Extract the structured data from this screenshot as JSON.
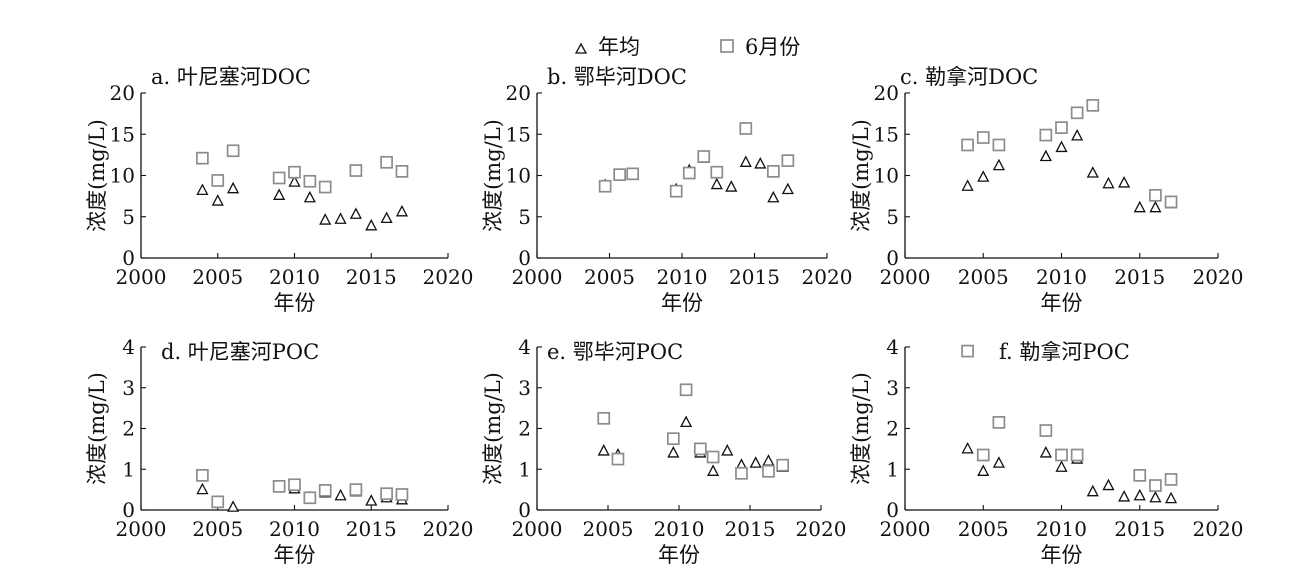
{
  "legend": {
    "items": [
      {
        "label": "年均",
        "marker": "triangle",
        "color": "#111111"
      },
      {
        "label": "6月份",
        "marker": "square",
        "color": "#8c8c8c"
      }
    ],
    "placement": "top-center"
  },
  "chart_data": [
    {
      "type": "scatter",
      "title": "a. 叶尼塞河DOC",
      "xlabel": "年份",
      "ylabel": "浓度(mg/L)",
      "xlim": [
        2000,
        2020
      ],
      "ylim": [
        0,
        20
      ],
      "xticks": [
        2000,
        2005,
        2010,
        2015,
        2020
      ],
      "yticks": [
        0,
        5,
        10,
        15,
        20
      ],
      "grid": false,
      "series": [
        {
          "name": "年均",
          "marker": "triangle",
          "x": [
            2004,
            2005,
            2006,
            2009,
            2010,
            2011,
            2012,
            2013,
            2014,
            2015,
            2016,
            2017
          ],
          "y": [
            8.2,
            6.9,
            8.4,
            7.6,
            9.2,
            7.3,
            4.6,
            4.7,
            5.3,
            3.9,
            4.8,
            5.6
          ]
        },
        {
          "name": "6月份",
          "marker": "square",
          "x": [
            2004,
            2005,
            2006,
            2009,
            2010,
            2011,
            2012,
            2014,
            2016,
            2017
          ],
          "y": [
            12.1,
            9.4,
            13.0,
            9.7,
            10.4,
            9.3,
            8.6,
            10.6,
            11.6,
            10.5
          ]
        }
      ]
    },
    {
      "type": "scatter",
      "title": "b. 鄂毕河DOC",
      "xlabel": "年份",
      "ylabel": "浓度(mg/L)",
      "xlim": [
        2000,
        2020
      ],
      "ylim": [
        0,
        20
      ],
      "xticks": [
        2000,
        2005,
        2010,
        2015,
        2020
      ],
      "yticks": [
        0,
        5,
        10,
        15,
        20
      ],
      "grid": false,
      "series": [
        {
          "name": "年均",
          "marker": "triangle",
          "x": [
            2004.7,
            2005.7,
            2006.6,
            2009.6,
            2010.5,
            2011.5,
            2012.4,
            2013.4,
            2014.4,
            2015.4,
            2016.3,
            2017.3
          ],
          "y": [
            8.8,
            10.0,
            10.1,
            8.3,
            10.6,
            12.1,
            8.9,
            8.6,
            11.6,
            11.4,
            7.3,
            8.3
          ]
        },
        {
          "name": "6月份",
          "marker": "square",
          "x": [
            2004.7,
            2005.7,
            2006.6,
            2009.6,
            2010.5,
            2011.5,
            2012.4,
            2014.4,
            2016.3,
            2017.3
          ],
          "y": [
            8.7,
            10.1,
            10.2,
            8.1,
            10.3,
            12.3,
            10.4,
            15.7,
            10.5,
            11.8
          ]
        }
      ]
    },
    {
      "type": "scatter",
      "title": "c. 勒拿河DOC",
      "xlabel": "年份",
      "ylabel": "浓度(mg/L)",
      "xlim": [
        2000,
        2020
      ],
      "ylim": [
        0,
        20
      ],
      "xticks": [
        2000,
        2005,
        2010,
        2015,
        2020
      ],
      "yticks": [
        0,
        5,
        10,
        15,
        20
      ],
      "grid": false,
      "series": [
        {
          "name": "年均",
          "marker": "triangle",
          "x": [
            2004,
            2005,
            2006,
            2009,
            2010,
            2011,
            2012,
            2013,
            2014,
            2015,
            2016,
            2017
          ],
          "y": [
            8.7,
            9.8,
            11.2,
            12.3,
            13.4,
            14.8,
            10.3,
            9.0,
            9.1,
            6.1,
            6.1,
            6.6
          ]
        },
        {
          "name": "6月份",
          "marker": "square",
          "x": [
            2004,
            2005,
            2006,
            2009,
            2010,
            2011,
            2012,
            2016,
            2017
          ],
          "y": [
            13.7,
            14.6,
            13.7,
            14.9,
            15.8,
            17.6,
            18.5,
            7.6,
            6.8
          ]
        }
      ]
    },
    {
      "type": "scatter",
      "title": "d. 叶尼塞河POC",
      "xlabel": "年份",
      "ylabel": "浓度(mg/L)",
      "xlim": [
        2000,
        2020
      ],
      "ylim": [
        0,
        4
      ],
      "xticks": [
        2000,
        2005,
        2010,
        2015,
        2020
      ],
      "yticks": [
        0,
        1,
        2,
        3,
        4
      ],
      "grid": false,
      "series": [
        {
          "name": "年均",
          "marker": "triangle",
          "x": [
            2004,
            2005,
            2006,
            2009,
            2010,
            2011,
            2012,
            2013,
            2014,
            2015,
            2016,
            2017
          ],
          "y": [
            0.5,
            0.2,
            0.07,
            0.55,
            0.52,
            0.3,
            0.42,
            0.35,
            0.45,
            0.22,
            0.3,
            0.25
          ]
        },
        {
          "name": "6月份",
          "marker": "square",
          "x": [
            2004,
            2005,
            2009,
            2010,
            2011,
            2012,
            2014,
            2016,
            2017
          ],
          "y": [
            0.85,
            0.2,
            0.58,
            0.62,
            0.3,
            0.48,
            0.5,
            0.4,
            0.38
          ]
        }
      ]
    },
    {
      "type": "scatter",
      "title": "e. 鄂毕河POC",
      "xlabel": "年份",
      "ylabel": "浓度(mg/L)",
      "xlim": [
        2000,
        2020
      ],
      "ylim": [
        0,
        4
      ],
      "xticks": [
        2000,
        2005,
        2010,
        2015,
        2020
      ],
      "yticks": [
        0,
        1,
        2,
        3,
        4
      ],
      "grid": false,
      "series": [
        {
          "name": "年均",
          "marker": "triangle",
          "x": [
            2004.7,
            2005.7,
            2009.6,
            2010.5,
            2011.5,
            2012.4,
            2013.4,
            2014.4,
            2015.4,
            2016.3,
            2017.3
          ],
          "y": [
            1.45,
            1.35,
            1.4,
            2.15,
            1.4,
            0.95,
            1.45,
            1.1,
            1.15,
            1.2,
            1.05
          ]
        },
        {
          "name": "6月份",
          "marker": "square",
          "x": [
            2004.7,
            2005.7,
            2009.6,
            2010.5,
            2011.5,
            2012.4,
            2014.4,
            2016.3,
            2017.3
          ],
          "y": [
            2.25,
            1.25,
            1.75,
            2.95,
            1.5,
            1.3,
            0.9,
            0.95,
            1.1
          ]
        }
      ]
    },
    {
      "type": "scatter",
      "title": "f. 勒拿河POC",
      "xlabel": "年份",
      "ylabel": "浓度(mg/L)",
      "xlim": [
        2000,
        2020
      ],
      "ylim": [
        0,
        4
      ],
      "xticks": [
        2000,
        2005,
        2010,
        2015,
        2020
      ],
      "yticks": [
        0,
        1,
        2,
        3,
        4
      ],
      "grid": false,
      "series": [
        {
          "name": "年均",
          "marker": "triangle",
          "x": [
            2004,
            2005,
            2006,
            2009,
            2010,
            2011,
            2012,
            2013,
            2014,
            2015,
            2016,
            2017
          ],
          "y": [
            1.5,
            0.95,
            1.15,
            1.4,
            1.05,
            1.25,
            0.45,
            0.6,
            0.32,
            0.35,
            0.3,
            0.28
          ]
        },
        {
          "name": "6月份",
          "marker": "square",
          "x": [
            2004,
            2005,
            2006,
            2009,
            2010,
            2011,
            2015,
            2016,
            2017
          ],
          "y": [
            3.9,
            1.35,
            2.15,
            1.95,
            1.35,
            1.35,
            0.85,
            0.6,
            0.75
          ]
        }
      ]
    }
  ]
}
